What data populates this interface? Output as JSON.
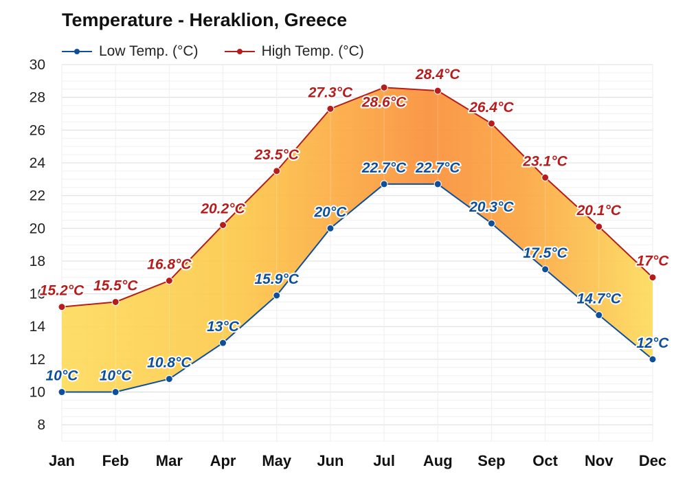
{
  "chart_data": {
    "type": "line",
    "title": "Temperature - Heraklion, Greece",
    "categories": [
      "Jan",
      "Feb",
      "Mar",
      "Apr",
      "May",
      "Jun",
      "Jul",
      "Aug",
      "Sep",
      "Oct",
      "Nov",
      "Dec"
    ],
    "series": [
      {
        "name": "Low Temp. (°C)",
        "color": "#0d4f9a",
        "values": [
          10,
          10,
          10.8,
          13,
          15.9,
          20,
          22.7,
          22.7,
          20.3,
          17.5,
          14.7,
          12
        ],
        "labels": [
          "10°C",
          "10°C",
          "10.8°C",
          "13°C",
          "15.9°C",
          "20°C",
          "22.7°C",
          "22.7°C",
          "20.3°C",
          "17.5°C",
          "14.7°C",
          "12°C"
        ]
      },
      {
        "name": "High Temp. (°C)",
        "color": "#b71c1c",
        "values": [
          15.2,
          15.5,
          16.8,
          20.2,
          23.5,
          27.3,
          28.6,
          28.4,
          26.4,
          23.1,
          20.1,
          17
        ],
        "labels": [
          "15.2°C",
          "15.5°C",
          "16.8°C",
          "20.2°C",
          "23.5°C",
          "27.3°C",
          "28.6°C",
          "28.4°C",
          "26.4°C",
          "23.1°C",
          "20.1°C",
          "17°C"
        ]
      }
    ],
    "yticks": [
      "8",
      "10",
      "12",
      "14",
      "16",
      "18",
      "20",
      "22",
      "24",
      "26",
      "28",
      "30"
    ],
    "ylim": [
      7,
      30
    ],
    "grid": true,
    "legend": "top-left",
    "fill_between": true,
    "fill_colors": [
      "#fddb5c",
      "#fcc84a",
      "#fba540",
      "#f98f3a"
    ]
  }
}
